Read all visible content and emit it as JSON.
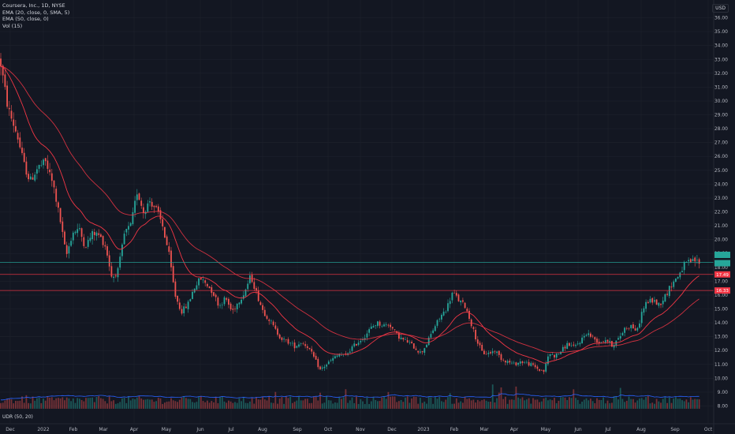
{
  "legend": {
    "title": "Coursera, Inc., 1D, NYSE",
    "ema20": "EMA (20, close, 0, SMA, 5)",
    "ema50": "EMA (50, close, 0)",
    "vol": "Vol (15)"
  },
  "indicator": "UDR (50, 20)",
  "currency": "USD",
  "colors": {
    "background": "#131722",
    "up": "#26a69a",
    "down": "#ef5350",
    "ema": "#f23645",
    "vol_ma": "#2962ff",
    "line": "#f23645",
    "teal_tag": "#26a69a"
  },
  "chart_data": {
    "type": "candlestick",
    "y_ticks": [
      "36.00",
      "35.00",
      "34.00",
      "33.00",
      "32.00",
      "31.00",
      "30.00",
      "29.00",
      "28.00",
      "27.00",
      "26.00",
      "25.00",
      "24.00",
      "23.00",
      "22.00",
      "21.00",
      "20.00",
      "19.00",
      "18.00",
      "17.00",
      "16.00",
      "15.00",
      "14.00",
      "13.00",
      "12.00",
      "11.00",
      "10.00",
      "9.00",
      "8.00"
    ],
    "x_ticks": [
      "Dec",
      "2022",
      "Feb",
      "Mar",
      "Apr",
      "May",
      "Jun",
      "Jul",
      "Aug",
      "Sep",
      "Oct",
      "Nov",
      "Dec",
      "2023",
      "Feb",
      "Mar",
      "Apr",
      "May",
      "Jun",
      "Jul",
      "Aug",
      "Sep",
      "Oct"
    ],
    "ylim": [
      7.8,
      36.6
    ],
    "horizontal_lines": [
      {
        "value": 18.35,
        "label": "",
        "color": "#26a69a"
      },
      {
        "value": 17.49,
        "label": "17.49",
        "color": "#f23645"
      },
      {
        "value": 16.33,
        "label": "16.33",
        "color": "#f23645"
      }
    ],
    "price_tags": [
      {
        "value": 18.9,
        "label": "",
        "color": "#26a69a"
      },
      {
        "value": 18.3,
        "label": "",
        "color": "#26a69a"
      }
    ],
    "price_path": [
      [
        0,
        33.0
      ],
      [
        10,
        29.5
      ],
      [
        22,
        27.5
      ],
      [
        30,
        25.5
      ],
      [
        38,
        24.2
      ],
      [
        48,
        25.2
      ],
      [
        58,
        25.6
      ],
      [
        68,
        23.8
      ],
      [
        76,
        21.5
      ],
      [
        84,
        18.8
      ],
      [
        92,
        20.5
      ],
      [
        100,
        20.8
      ],
      [
        108,
        19.5
      ],
      [
        118,
        20.5
      ],
      [
        126,
        20.3
      ],
      [
        134,
        19.5
      ],
      [
        142,
        17.2
      ],
      [
        150,
        17.8
      ],
      [
        158,
        20.5
      ],
      [
        166,
        21.0
      ],
      [
        174,
        23.5
      ],
      [
        182,
        22.0
      ],
      [
        190,
        22.8
      ],
      [
        198,
        22.2
      ],
      [
        206,
        21.0
      ],
      [
        214,
        19.0
      ],
      [
        222,
        16.0
      ],
      [
        230,
        14.8
      ],
      [
        238,
        15.3
      ],
      [
        246,
        16.5
      ],
      [
        254,
        17.2
      ],
      [
        262,
        16.8
      ],
      [
        270,
        16.2
      ],
      [
        278,
        15.2
      ],
      [
        286,
        15.8
      ],
      [
        294,
        14.8
      ],
      [
        302,
        15.5
      ],
      [
        310,
        16.2
      ],
      [
        318,
        17.4
      ],
      [
        326,
        16.0
      ],
      [
        334,
        14.8
      ],
      [
        342,
        14.2
      ],
      [
        350,
        13.4
      ],
      [
        358,
        12.8
      ],
      [
        366,
        12.6
      ],
      [
        374,
        12.3
      ],
      [
        382,
        12.6
      ],
      [
        390,
        12.3
      ],
      [
        398,
        11.5
      ],
      [
        406,
        10.6
      ],
      [
        414,
        11.0
      ],
      [
        422,
        11.4
      ],
      [
        430,
        11.7
      ],
      [
        438,
        11.6
      ],
      [
        446,
        12.2
      ],
      [
        454,
        12.6
      ],
      [
        462,
        13.0
      ],
      [
        470,
        13.6
      ],
      [
        478,
        14.0
      ],
      [
        486,
        13.8
      ],
      [
        494,
        13.9
      ],
      [
        502,
        13.2
      ],
      [
        510,
        12.8
      ],
      [
        518,
        12.6
      ],
      [
        526,
        12.2
      ],
      [
        534,
        11.8
      ],
      [
        542,
        12.6
      ],
      [
        550,
        13.6
      ],
      [
        558,
        14.4
      ],
      [
        566,
        15.0
      ],
      [
        574,
        16.2
      ],
      [
        582,
        15.6
      ],
      [
        590,
        15.2
      ],
      [
        596,
        14.2
      ],
      [
        604,
        12.8
      ],
      [
        612,
        11.8
      ],
      [
        620,
        11.8
      ],
      [
        628,
        12.0
      ],
      [
        636,
        11.4
      ],
      [
        644,
        11.2
      ],
      [
        652,
        11.0
      ],
      [
        660,
        11.2
      ],
      [
        668,
        11.1
      ],
      [
        676,
        10.9
      ],
      [
        684,
        10.6
      ],
      [
        690,
        10.5
      ],
      [
        696,
        11.8
      ],
      [
        704,
        11.6
      ],
      [
        712,
        12.0
      ],
      [
        720,
        12.5
      ],
      [
        728,
        12.2
      ],
      [
        736,
        12.7
      ],
      [
        744,
        13.3
      ],
      [
        752,
        12.9
      ],
      [
        760,
        12.6
      ],
      [
        768,
        12.8
      ],
      [
        776,
        12.4
      ],
      [
        784,
        12.8
      ],
      [
        792,
        13.6
      ],
      [
        800,
        13.8
      ],
      [
        808,
        13.4
      ],
      [
        814,
        14.8
      ],
      [
        820,
        15.5
      ],
      [
        828,
        15.6
      ],
      [
        836,
        15.3
      ],
      [
        844,
        16.0
      ],
      [
        852,
        16.8
      ],
      [
        860,
        17.4
      ],
      [
        868,
        18.2
      ],
      [
        876,
        18.4
      ],
      [
        882,
        18.5
      ],
      [
        888,
        18.3
      ]
    ]
  }
}
